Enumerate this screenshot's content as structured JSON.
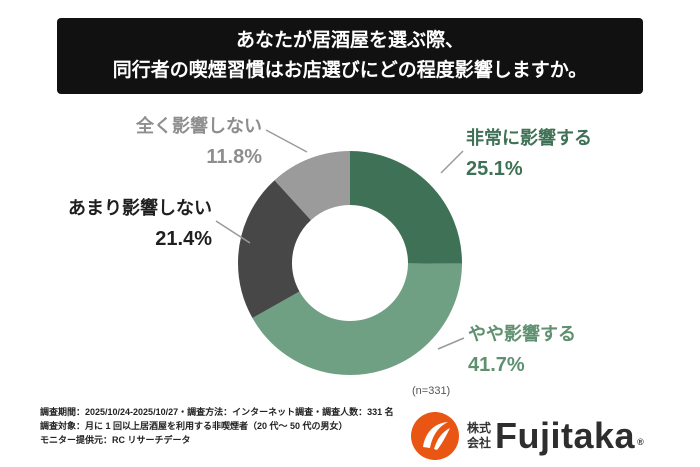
{
  "title": {
    "line1": "あなたが居酒屋を選ぶ際、",
    "line2": "同行者の喫煙習慣はお店選びにどの程度影響しますか。"
  },
  "chart_data": {
    "type": "pie",
    "donut": true,
    "start_angle_deg": -90,
    "direction": "clockwise",
    "n_label": "(n=331)",
    "segments": [
      {
        "label": "非常に影響する",
        "value": 25.1,
        "pct_label": "25.1%",
        "color": "#3E7155"
      },
      {
        "label": "やや影響する",
        "value": 41.7,
        "pct_label": "41.7%",
        "color": "#6FA083"
      },
      {
        "label": "あまり影響しない",
        "value": 21.4,
        "pct_label": "21.4%",
        "color": "#474747"
      },
      {
        "label": "全く影響しない",
        "value": 11.8,
        "pct_label": "11.8%",
        "color": "#9B9B9B"
      }
    ],
    "label_colors": {
      "seg0": "#3E7155",
      "seg1": "#5F9070",
      "seg2": "#1f1f1f",
      "seg3": "#8E8E8E"
    }
  },
  "footer": {
    "line1": "調査期間：2025/10/24-2025/10/27・調査方法：インターネット調査・調査人数：331 名",
    "line2": "調査対象：月に 1 回以上居酒屋を利用する非喫煙者（20 代〜 50 代の男女）",
    "line3": "モニター提供元：RC リサーチデータ"
  },
  "logo": {
    "prefix_top": "株式",
    "prefix_bottom": "会社",
    "brand": "Fujitaka",
    "registered": "®",
    "accent_color": "#E95513"
  }
}
